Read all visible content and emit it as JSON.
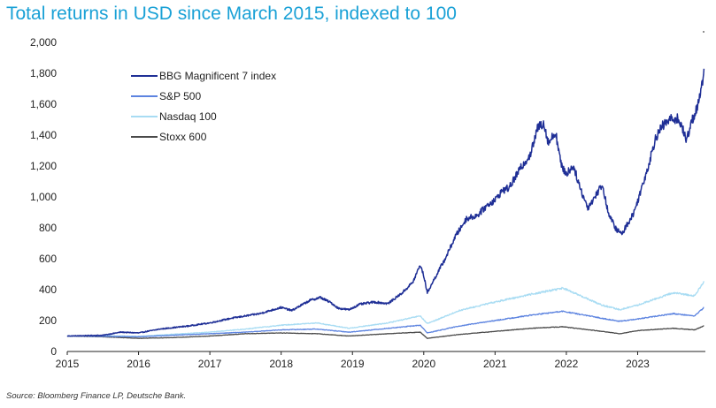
{
  "chart_data": {
    "type": "line",
    "title": "Total returns in USD since March 2015, indexed to 100",
    "source": "Source: Bloomberg Finance LP, Deutsche Bank.",
    "xlabel": "",
    "ylabel": "",
    "xlim": [
      2015,
      2023.95
    ],
    "ylim": [
      0,
      2000
    ],
    "x_ticks": [
      2015,
      2016,
      2017,
      2018,
      2019,
      2020,
      2021,
      2022,
      2023
    ],
    "x_tick_labels": [
      "2015",
      "2016",
      "2017",
      "2018",
      "2019",
      "2020",
      "2021",
      "2022",
      "2023"
    ],
    "y_ticks": [
      0,
      200,
      400,
      600,
      800,
      1000,
      1200,
      1400,
      1600,
      1800,
      2000
    ],
    "y_tick_labels": [
      "0",
      "200",
      "400",
      "600",
      "800",
      "1,000",
      "1,200",
      "1,400",
      "1,600",
      "1,800",
      "2,000"
    ],
    "grid": false,
    "legend_position": "top-left",
    "series": [
      {
        "name": "BBG Magnificent 7 index",
        "color": "#1f2f96",
        "points": [
          [
            2015.0,
            100
          ],
          [
            2015.5,
            105
          ],
          [
            2015.75,
            125
          ],
          [
            2016.0,
            120
          ],
          [
            2016.3,
            145
          ],
          [
            2016.7,
            165
          ],
          [
            2017.0,
            185
          ],
          [
            2017.3,
            215
          ],
          [
            2017.7,
            245
          ],
          [
            2018.0,
            285
          ],
          [
            2018.15,
            265
          ],
          [
            2018.4,
            330
          ],
          [
            2018.55,
            350
          ],
          [
            2018.7,
            315
          ],
          [
            2018.8,
            280
          ],
          [
            2018.95,
            270
          ],
          [
            2019.1,
            305
          ],
          [
            2019.3,
            320
          ],
          [
            2019.5,
            310
          ],
          [
            2019.7,
            380
          ],
          [
            2019.85,
            450
          ],
          [
            2019.95,
            560
          ],
          [
            2020.0,
            490
          ],
          [
            2020.05,
            380
          ],
          [
            2020.15,
            470
          ],
          [
            2020.3,
            600
          ],
          [
            2020.45,
            750
          ],
          [
            2020.6,
            860
          ],
          [
            2020.75,
            880
          ],
          [
            2020.9,
            950
          ],
          [
            2021.0,
            980
          ],
          [
            2021.1,
            1040
          ],
          [
            2021.2,
            1060
          ],
          [
            2021.35,
            1180
          ],
          [
            2021.5,
            1280
          ],
          [
            2021.6,
            1450
          ],
          [
            2021.68,
            1480
          ],
          [
            2021.75,
            1350
          ],
          [
            2021.85,
            1420
          ],
          [
            2021.93,
            1200
          ],
          [
            2022.0,
            1150
          ],
          [
            2022.1,
            1200
          ],
          [
            2022.2,
            1050
          ],
          [
            2022.3,
            930
          ],
          [
            2022.4,
            1000
          ],
          [
            2022.5,
            1080
          ],
          [
            2022.6,
            880
          ],
          [
            2022.7,
            790
          ],
          [
            2022.78,
            760
          ],
          [
            2022.85,
            820
          ],
          [
            2022.95,
            900
          ],
          [
            2023.05,
            1050
          ],
          [
            2023.15,
            1200
          ],
          [
            2023.25,
            1380
          ],
          [
            2023.35,
            1460
          ],
          [
            2023.45,
            1500
          ],
          [
            2023.55,
            1510
          ],
          [
            2023.62,
            1460
          ],
          [
            2023.68,
            1360
          ],
          [
            2023.75,
            1480
          ],
          [
            2023.82,
            1560
          ],
          [
            2023.88,
            1650
          ],
          [
            2023.93,
            1830
          ]
        ]
      },
      {
        "name": "S&P 500",
        "color": "#5d84e0",
        "points": [
          [
            2015.0,
            100
          ],
          [
            2015.5,
            98
          ],
          [
            2016.0,
            95
          ],
          [
            2016.5,
            105
          ],
          [
            2017.0,
            115
          ],
          [
            2017.5,
            125
          ],
          [
            2018.0,
            140
          ],
          [
            2018.5,
            145
          ],
          [
            2018.95,
            125
          ],
          [
            2019.5,
            150
          ],
          [
            2019.95,
            170
          ],
          [
            2020.05,
            120
          ],
          [
            2020.5,
            165
          ],
          [
            2021.0,
            200
          ],
          [
            2021.5,
            235
          ],
          [
            2021.95,
            260
          ],
          [
            2022.5,
            215
          ],
          [
            2022.75,
            195
          ],
          [
            2023.0,
            210
          ],
          [
            2023.5,
            245
          ],
          [
            2023.8,
            230
          ],
          [
            2023.93,
            285
          ]
        ]
      },
      {
        "name": "Nasdaq 100",
        "color": "#a8dcf3",
        "points": [
          [
            2015.0,
            100
          ],
          [
            2015.5,
            102
          ],
          [
            2016.0,
            98
          ],
          [
            2016.5,
            112
          ],
          [
            2017.0,
            125
          ],
          [
            2017.5,
            145
          ],
          [
            2018.0,
            170
          ],
          [
            2018.5,
            185
          ],
          [
            2018.95,
            150
          ],
          [
            2019.5,
            185
          ],
          [
            2019.95,
            230
          ],
          [
            2020.05,
            180
          ],
          [
            2020.5,
            265
          ],
          [
            2021.0,
            320
          ],
          [
            2021.5,
            370
          ],
          [
            2021.95,
            410
          ],
          [
            2022.5,
            300
          ],
          [
            2022.75,
            270
          ],
          [
            2023.0,
            300
          ],
          [
            2023.5,
            380
          ],
          [
            2023.8,
            360
          ],
          [
            2023.93,
            455
          ]
        ]
      },
      {
        "name": "Stoxx 600",
        "color": "#4a4a4a",
        "points": [
          [
            2015.0,
            100
          ],
          [
            2015.5,
            95
          ],
          [
            2016.0,
            85
          ],
          [
            2016.5,
            90
          ],
          [
            2017.0,
            100
          ],
          [
            2017.5,
            115
          ],
          [
            2018.0,
            120
          ],
          [
            2018.5,
            115
          ],
          [
            2018.95,
            100
          ],
          [
            2019.5,
            115
          ],
          [
            2019.95,
            125
          ],
          [
            2020.05,
            85
          ],
          [
            2020.5,
            110
          ],
          [
            2021.0,
            130
          ],
          [
            2021.5,
            150
          ],
          [
            2021.95,
            160
          ],
          [
            2022.5,
            130
          ],
          [
            2022.75,
            115
          ],
          [
            2023.0,
            135
          ],
          [
            2023.5,
            150
          ],
          [
            2023.8,
            140
          ],
          [
            2023.93,
            165
          ]
        ]
      }
    ]
  }
}
